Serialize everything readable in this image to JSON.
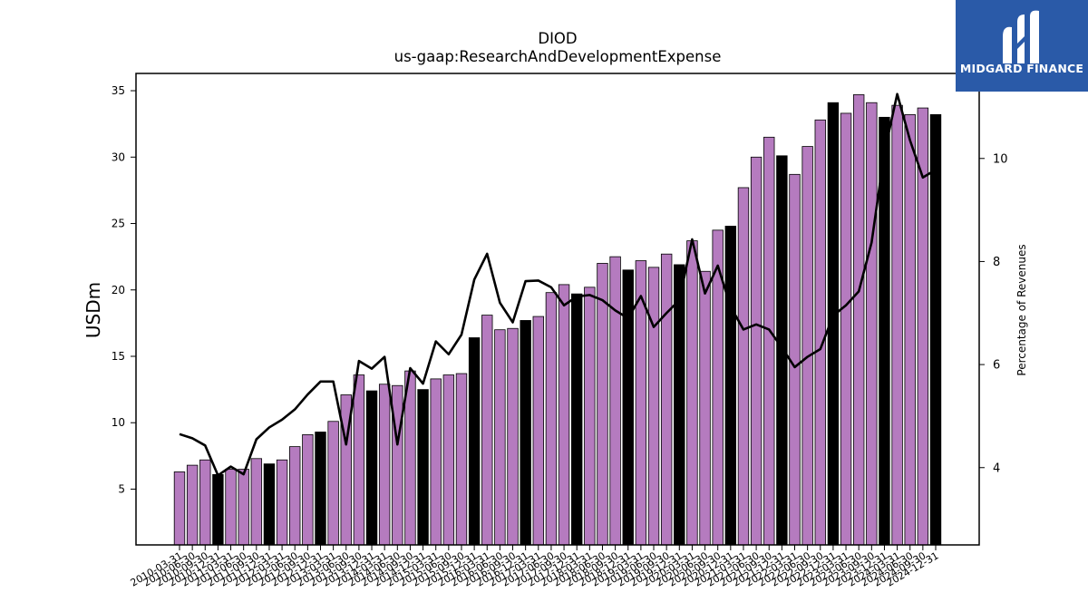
{
  "brand": {
    "name": "MIDGARD FINANCE",
    "bg_color": "#2a5aa8"
  },
  "chart_data": {
    "type": "bar",
    "title": "DIOD",
    "subtitle": "us-gaap:ResearchAndDevelopmentExpense",
    "ylabel": "USDm",
    "y2label": "Percentage of Revenues",
    "ylim": [
      0.8,
      36.3
    ],
    "y2lim": [
      2.5,
      11.65
    ],
    "yticks": [
      5,
      10,
      15,
      20,
      25,
      30,
      35
    ],
    "y2ticks": [
      4,
      6,
      8,
      10
    ],
    "bar_color": "#b57bbf",
    "highlight_color": "#000000",
    "line_color": "#000000",
    "categories": [
      "2010-03-31",
      "2010-06-30",
      "2010-09-30",
      "2010-12-31",
      "2011-03-31",
      "2011-06-30",
      "2011-09-30",
      "2011-12-31",
      "2012-03-31",
      "2012-06-30",
      "2012-09-30",
      "2012-12-31",
      "2013-03-31",
      "2013-06-30",
      "2013-09-30",
      "2013-12-31",
      "2014-03-31",
      "2014-06-30",
      "2014-09-30",
      "2014-12-31",
      "2015-03-31",
      "2015-06-30",
      "2015-09-30",
      "2015-12-31",
      "2016-03-31",
      "2016-06-30",
      "2016-09-30",
      "2016-12-31",
      "2017-03-31",
      "2017-06-30",
      "2017-09-30",
      "2017-12-31",
      "2018-03-31",
      "2018-06-30",
      "2018-09-30",
      "2018-12-31",
      "2019-03-31",
      "2019-06-30",
      "2019-09-30",
      "2019-12-31",
      "2020-03-31",
      "2020-06-30",
      "2020-09-30",
      "2020-12-31",
      "2021-03-31",
      "2021-06-30",
      "2021-09-30",
      "2021-12-31",
      "2022-03-31",
      "2022-06-30",
      "2022-09-30",
      "2022-12-31",
      "2023-03-31",
      "2023-06-30",
      "2023-09-30",
      "2023-12-31",
      "2024-03-31",
      "2024-06-30",
      "2024-09-30",
      "2024-12-31"
    ],
    "series": [
      {
        "kind": "bar",
        "values": [
          6.3,
          6.8,
          7.2,
          6.1,
          6.5,
          6.5,
          7.3,
          6.9,
          7.2,
          8.2,
          9.1,
          9.3,
          10.1,
          12.1,
          13.6,
          12.4,
          12.9,
          12.8,
          13.9,
          12.5,
          13.3,
          13.6,
          13.7,
          16.4,
          18.1,
          17.0,
          17.1,
          17.7,
          18.0,
          19.8,
          20.4,
          19.7,
          20.2,
          22.0,
          22.5,
          21.5,
          22.2,
          21.7,
          22.7,
          21.9,
          23.7,
          21.4,
          24.5,
          24.8,
          27.7,
          30.0,
          31.5,
          30.1,
          28.7,
          30.8,
          32.8,
          34.1,
          33.3,
          34.7,
          34.1,
          33.0,
          33.9,
          33.2,
          33.7,
          33.2
        ],
        "highlight": [
          false,
          false,
          false,
          true,
          false,
          false,
          false,
          true,
          false,
          false,
          false,
          true,
          false,
          false,
          false,
          true,
          false,
          false,
          false,
          true,
          false,
          false,
          false,
          true,
          false,
          false,
          false,
          true,
          false,
          false,
          false,
          true,
          false,
          false,
          false,
          true,
          false,
          false,
          false,
          true,
          false,
          false,
          false,
          true,
          false,
          false,
          false,
          true,
          false,
          false,
          false,
          true,
          false,
          false,
          false,
          true,
          false,
          false,
          false,
          true
        ]
      },
      {
        "kind": "line",
        "axis": "right",
        "values": [
          4.65,
          4.57,
          4.43,
          3.85,
          4.02,
          3.87,
          4.55,
          4.78,
          4.93,
          5.13,
          5.42,
          5.67,
          5.67,
          4.45,
          6.07,
          5.92,
          6.15,
          4.45,
          5.93,
          5.63,
          6.45,
          6.2,
          6.58,
          7.65,
          8.15,
          7.2,
          6.82,
          7.62,
          7.63,
          7.5,
          7.15,
          7.32,
          7.35,
          7.25,
          7.05,
          6.9,
          7.33,
          6.73,
          7.0,
          7.25,
          8.43,
          7.38,
          7.92,
          7.12,
          6.68,
          6.78,
          6.68,
          6.33,
          5.95,
          6.15,
          6.3,
          6.95,
          7.15,
          7.42,
          8.37,
          10.12,
          11.25,
          10.35,
          9.63,
          9.78
        ]
      }
    ]
  }
}
